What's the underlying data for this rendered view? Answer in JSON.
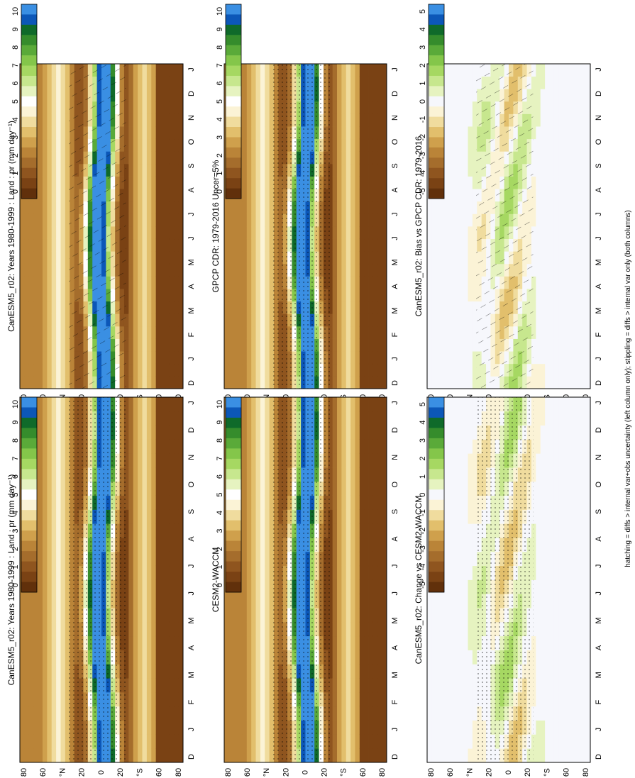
{
  "footer": "hatching = diffs > internal var+obs uncertainty (left column only); stippling = diffs > internal var only (both columns)",
  "colors": {
    "field_scale": [
      "#61300b",
      "#7a4214",
      "#8f551f",
      "#a56d2c",
      "#ba8438",
      "#cfa04c",
      "#e2bf6c",
      "#f0dc9e",
      "#fbf3d6",
      "#ffffff",
      "#e6f3c0",
      "#c7e78e",
      "#a6d862",
      "#84c64a",
      "#5aaa39",
      "#358c2c",
      "#0f6a2a",
      "#0c57b8",
      "#3a8fe3"
    ],
    "diff_scale": [
      "#61300b",
      "#7a4214",
      "#8f551f",
      "#a56d2c",
      "#ba8438",
      "#cfa04c",
      "#e2bf6c",
      "#f0dc9e",
      "#fbf3d6",
      "#f6f7fc",
      "#e6f3c0",
      "#c7e78e",
      "#a6d862",
      "#84c64a",
      "#5aaa39",
      "#358c2c",
      "#0f6a2a",
      "#0c57b8",
      "#3a8fe3"
    ]
  },
  "chart_data": [
    {
      "type": "heatmap",
      "title": "CanESM5_r02: Years 1980-1999 : Land : pr (mm day⁻¹)",
      "x_ticks": [
        "D",
        "J",
        "F",
        "M",
        "A",
        "M",
        "J",
        "J",
        "A",
        "S",
        "O",
        "N",
        "D",
        "J"
      ],
      "y_ticks": [
        "80",
        "60",
        "°N",
        "20",
        "0",
        "20",
        "°S",
        "60",
        "80"
      ],
      "colorbar": [
        "10",
        "9",
        "8",
        "7",
        "6",
        "5",
        "4",
        "3",
        "2",
        "1",
        "0"
      ],
      "value_range": [
        0,
        10
      ],
      "overlay": "hatching"
    },
    {
      "type": "heatmap",
      "title": "GPCP CDR: 1979-2016 Uncer=5%",
      "x_ticks": [
        "D",
        "J",
        "F",
        "M",
        "A",
        "M",
        "J",
        "J",
        "A",
        "S",
        "O",
        "N",
        "D",
        "J"
      ],
      "y_ticks": [
        "80",
        "60",
        "°N",
        "20",
        "0",
        "20",
        "°S",
        "60",
        "80"
      ],
      "colorbar": [
        "10",
        "9",
        "8",
        "7",
        "6",
        "5",
        "4",
        "3",
        "2",
        "1",
        "0"
      ],
      "value_range": [
        0,
        10
      ],
      "overlay": "stippling"
    },
    {
      "type": "heatmap",
      "title": "CanESM5_r02: Bias vs GPCP CDR: 1979-2016",
      "x_ticks": [
        "D",
        "J",
        "F",
        "M",
        "A",
        "M",
        "J",
        "J",
        "A",
        "S",
        "O",
        "N",
        "D",
        "J"
      ],
      "y_ticks": [
        "80",
        "60",
        "°N",
        "20",
        "0",
        "20",
        "°S",
        "60",
        "80"
      ],
      "colorbar": [
        "5",
        "4",
        "3",
        "2",
        "1",
        "0",
        "-1",
        "-2",
        "-3",
        "-4",
        "-5"
      ],
      "value_range": [
        -5,
        5
      ],
      "overlay": "hatching"
    },
    {
      "type": "heatmap",
      "title": "CanESM5_r02: Years 1980-1999 : Land : pr (mm day⁻¹)",
      "x_ticks": [
        "D",
        "J",
        "F",
        "M",
        "A",
        "M",
        "J",
        "J",
        "A",
        "S",
        "O",
        "N",
        "D",
        "J"
      ],
      "y_ticks": [
        "80",
        "60",
        "°N",
        "20",
        "0",
        "20",
        "°S",
        "60",
        "80"
      ],
      "colorbar": [
        "10",
        "9",
        "8",
        "7",
        "6",
        "5",
        "4",
        "3",
        "2",
        "1",
        "0"
      ],
      "value_range": [
        0,
        10
      ],
      "overlay": "stippling"
    },
    {
      "type": "heatmap",
      "title": "CESM2-WACCM",
      "x_ticks": [
        "D",
        "J",
        "F",
        "M",
        "A",
        "M",
        "J",
        "J",
        "A",
        "S",
        "O",
        "N",
        "D",
        "J"
      ],
      "y_ticks": [
        "80",
        "60",
        "°N",
        "20",
        "0",
        "20",
        "°S",
        "60",
        "80"
      ],
      "colorbar": [
        "10",
        "9",
        "8",
        "7",
        "6",
        "5",
        "4",
        "3",
        "2",
        "1",
        "0"
      ],
      "value_range": [
        0,
        10
      ],
      "overlay": "stippling"
    },
    {
      "type": "heatmap",
      "title": "CanESM5_r02: Change vs CESM2-WACCM",
      "x_ticks": [
        "D",
        "J",
        "F",
        "M",
        "A",
        "M",
        "J",
        "J",
        "A",
        "S",
        "O",
        "N",
        "D",
        "J"
      ],
      "y_ticks": [
        "80",
        "60",
        "°N",
        "20",
        "0",
        "20",
        "°S",
        "60",
        "80"
      ],
      "colorbar": [
        "5",
        "4",
        "3",
        "2",
        "1",
        "0",
        "-1",
        "-2",
        "-3",
        "-4",
        "-5"
      ],
      "value_range": [
        -5,
        5
      ],
      "overlay": "stippling"
    }
  ]
}
